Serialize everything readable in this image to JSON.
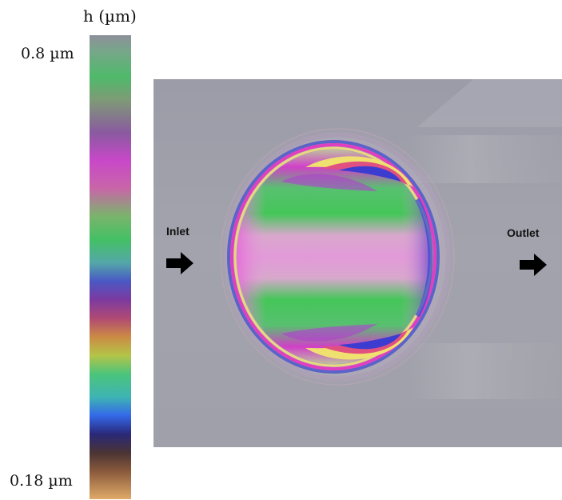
{
  "colorbar": {
    "title": "h (µm)",
    "max_label": "0.8 µm",
    "min_label": "0.18 µm"
  },
  "image": {
    "inlet_label": "Inlet",
    "outlet_label": "Outlet"
  },
  "icons": {
    "inlet_arrow": "right-arrow-icon",
    "outlet_arrow": "right-arrow-icon"
  }
}
